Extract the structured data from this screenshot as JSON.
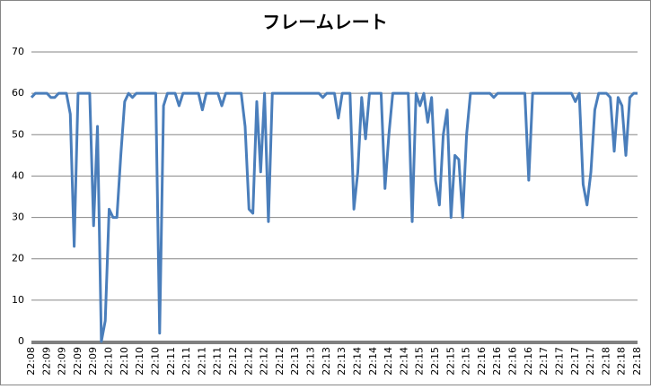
{
  "chart_data": {
    "type": "line",
    "title": "フレームレート",
    "categories": [
      "22:08",
      null,
      null,
      null,
      "22:09",
      null,
      null,
      null,
      "22:09",
      null,
      null,
      null,
      "22:09",
      null,
      null,
      null,
      "22:09",
      null,
      null,
      null,
      "22:10",
      null,
      null,
      null,
      "22:10",
      null,
      null,
      null,
      "22:10",
      null,
      null,
      null,
      "22:10",
      null,
      null,
      null,
      "22:11",
      null,
      null,
      null,
      "22:11",
      null,
      null,
      null,
      "22:11",
      null,
      null,
      null,
      "22:11",
      null,
      null,
      null,
      "22:12",
      null,
      null,
      null,
      "22:12",
      null,
      null,
      null,
      "22:12",
      null,
      null,
      null,
      "22:12",
      null,
      null,
      null,
      "22:13",
      null,
      null,
      null,
      "22:13",
      null,
      null,
      null,
      "22:13",
      null,
      null,
      null,
      "22:13",
      null,
      null,
      null,
      "22:14",
      null,
      null,
      null,
      "22:14",
      null,
      null,
      null,
      "22:14",
      null,
      null,
      null,
      "22:14",
      null,
      null,
      null,
      "22:15",
      null,
      null,
      null,
      "22:15",
      null,
      null,
      null,
      "22:15",
      null,
      null,
      null,
      "22:15",
      null,
      null,
      null,
      "22:16",
      null,
      null,
      null,
      "22:16",
      null,
      null,
      null,
      "22:16",
      null,
      null,
      null,
      "22:16",
      null,
      null,
      null,
      "22:17",
      null,
      null,
      null,
      "22:17",
      null,
      null,
      null,
      "22:17",
      null,
      null,
      null,
      "22:17",
      null,
      null,
      null,
      "22:18",
      null,
      null,
      null,
      "22:18",
      null,
      null,
      null,
      "22:18"
    ],
    "values": [
      59,
      60,
      60,
      60,
      60,
      59,
      59,
      60,
      60,
      60,
      55,
      23,
      60,
      60,
      60,
      60,
      28,
      52,
      0,
      5,
      32,
      30,
      30,
      45,
      58,
      60,
      59,
      60,
      60,
      60,
      60,
      60,
      60,
      2,
      57,
      60,
      60,
      60,
      57,
      60,
      60,
      60,
      60,
      60,
      56,
      60,
      60,
      60,
      60,
      57,
      60,
      60,
      60,
      60,
      60,
      52,
      32,
      31,
      58,
      41,
      60,
      29,
      60,
      60,
      60,
      60,
      60,
      60,
      60,
      60,
      60,
      60,
      60,
      60,
      60,
      59,
      60,
      60,
      60,
      54,
      60,
      60,
      60,
      32,
      41,
      59,
      49,
      60,
      60,
      60,
      60,
      37,
      50,
      60,
      60,
      60,
      60,
      60,
      29,
      60,
      57,
      60,
      53,
      59,
      39,
      33,
      50,
      56,
      30,
      45,
      44,
      30,
      50,
      60,
      60,
      60,
      60,
      60,
      60,
      59,
      60,
      60,
      60,
      60,
      60,
      60,
      60,
      60,
      39,
      60,
      60,
      60,
      60,
      60,
      60,
      60,
      60,
      60,
      60,
      60,
      58,
      60,
      38,
      33,
      41,
      56,
      60,
      60,
      60,
      59,
      46,
      59,
      57,
      45,
      59,
      60,
      60
    ],
    "color": "#4a7ebb",
    "ylim": [
      0,
      70
    ],
    "yticks": [
      0,
      10,
      20,
      30,
      40,
      50,
      60,
      70
    ],
    "grid": true
  }
}
